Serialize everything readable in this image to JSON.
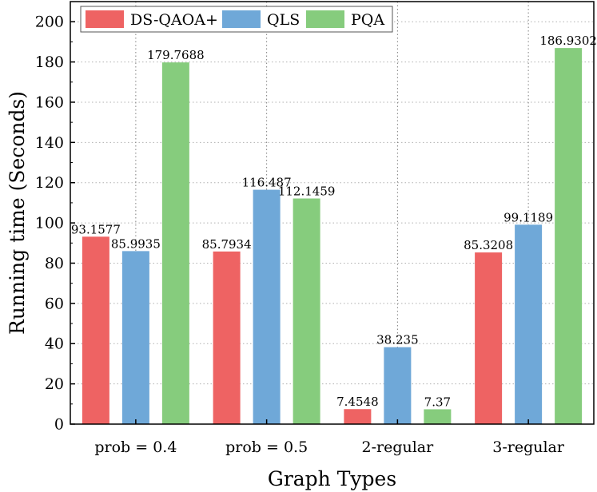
{
  "chart_data": {
    "type": "bar",
    "title": "",
    "xlabel": "Graph Types",
    "ylabel": "Running time (Seconds)",
    "ylim": [
      0,
      210
    ],
    "yticks": [
      0,
      20,
      40,
      60,
      80,
      100,
      120,
      140,
      160,
      180,
      200
    ],
    "categories": [
      "prob = 0.4",
      "prob = 0.5",
      "2-regular",
      "3-regular"
    ],
    "series": [
      {
        "name": "DS-QAOA+",
        "color": "#EE6363",
        "values": [
          93.1577,
          85.7934,
          7.4548,
          85.3208
        ],
        "labels": [
          "93.1577",
          "85.7934",
          "7.4548",
          "85.3208"
        ]
      },
      {
        "name": "QLS",
        "color": "#6FA8D8",
        "values": [
          85.9935,
          116.487,
          38.235,
          99.1189
        ],
        "labels": [
          "85.9935",
          "116.487",
          "38.235",
          "99.1189"
        ]
      },
      {
        "name": "PQA",
        "color": "#86CC7D",
        "values": [
          179.7688,
          112.1459,
          7.37,
          186.9302
        ],
        "labels": [
          "179.7688",
          "112.1459",
          "7.37",
          "186.9302"
        ]
      }
    ],
    "grid": true,
    "legend_position": "top-left"
  }
}
